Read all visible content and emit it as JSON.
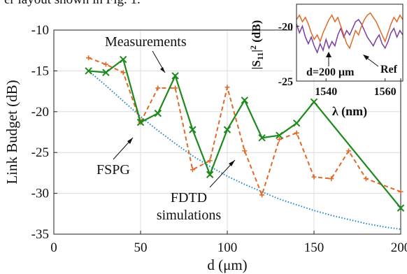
{
  "caption_fragment": "er layout shown in Fig. 1.",
  "chart_data": [
    {
      "type": "line",
      "xlabel": "d (μm)",
      "ylabel": "Link Budget (dB)",
      "xlim": [
        0,
        200
      ],
      "ylim": [
        -35,
        -10
      ],
      "xticks": [
        0,
        50,
        100,
        150,
        200
      ],
      "yticks": [
        -10,
        -15,
        -20,
        -25,
        -30,
        -35
      ],
      "grid": true,
      "series": [
        {
          "key": "measurements",
          "color": "#1e8a1e",
          "marker": "x",
          "points": [
            [
              20,
              -15.0
            ],
            [
              30,
              -15.2
            ],
            [
              40,
              -13.6
            ],
            [
              50,
              -21.3
            ],
            [
              60,
              -20.2
            ],
            [
              70,
              -15.6
            ],
            [
              80,
              -22.2
            ],
            [
              90,
              -27.7
            ],
            [
              100,
              -22.2
            ],
            [
              110,
              -18.6
            ],
            [
              120,
              -23.2
            ],
            [
              130,
              -22.9
            ],
            [
              140,
              -21.4
            ],
            [
              150,
              -18.8
            ],
            [
              200,
              -31.8
            ]
          ]
        },
        {
          "key": "fdtd",
          "color": "#e06a28",
          "marker": "+",
          "points": [
            [
              20,
              -13.4
            ],
            [
              30,
              -14.2
            ],
            [
              40,
              -15.2
            ],
            [
              50,
              -21.3
            ],
            [
              60,
              -17.1
            ],
            [
              70,
              -17.1
            ],
            [
              80,
              -27.1
            ],
            [
              90,
              -26.0
            ],
            [
              100,
              -17.0
            ],
            [
              110,
              -24.8
            ],
            [
              120,
              -30.2
            ],
            [
              130,
              -23.4
            ],
            [
              140,
              -22.6
            ],
            [
              150,
              -28.0
            ],
            [
              160,
              -28.2
            ],
            [
              170,
              -24.8
            ],
            [
              180,
              -28.2
            ],
            [
              200,
              -29.8
            ]
          ]
        },
        {
          "key": "fspg",
          "color": "#1f86c8",
          "marker": "none",
          "points": [
            [
              20,
              -15.0
            ],
            [
              30,
              -16.8
            ],
            [
              40,
              -18.7
            ],
            [
              50,
              -20.6
            ],
            [
              60,
              -22.3
            ],
            [
              70,
              -23.9
            ],
            [
              80,
              -25.4
            ],
            [
              90,
              -26.7
            ],
            [
              100,
              -27.9
            ],
            [
              110,
              -28.9
            ],
            [
              120,
              -29.8
            ],
            [
              130,
              -30.7
            ],
            [
              140,
              -31.4
            ],
            [
              150,
              -32.1
            ],
            [
              160,
              -32.7
            ],
            [
              170,
              -33.2
            ],
            [
              180,
              -33.7
            ],
            [
              190,
              -34.1
            ],
            [
              200,
              -34.4
            ]
          ]
        }
      ],
      "annotations": {
        "measurements": "Measurements",
        "fspg": "FSPG",
        "fdtd_line1": "FDTD",
        "fdtd_line2": "simulations"
      }
    },
    {
      "type": "line",
      "xlabel": "λ (nm)",
      "ylabel": "|S11|^2 (dB)",
      "xlim": [
        1530,
        1566
      ],
      "ylim": [
        -25,
        -18
      ],
      "xticks": [
        1540,
        1560
      ],
      "yticks": [
        -20,
        -25
      ],
      "annotations": {
        "d_label": "d=200 μm",
        "ref_label": "Ref"
      },
      "series": [
        {
          "key": "d200",
          "color": "#7a3fa0",
          "points": [
            [
              1530,
              -19.8
            ],
            [
              1531,
              -20.6
            ],
            [
              1532,
              -20.0
            ],
            [
              1533,
              -21.0
            ],
            [
              1534,
              -21.6
            ],
            [
              1535,
              -21.0
            ],
            [
              1536,
              -21.8
            ],
            [
              1537,
              -22.4
            ],
            [
              1538,
              -21.6
            ],
            [
              1539,
              -22.2
            ],
            [
              1540,
              -21.2
            ],
            [
              1541,
              -22.0
            ],
            [
              1542,
              -21.4
            ],
            [
              1543,
              -21.8
            ],
            [
              1544,
              -20.8
            ],
            [
              1545,
              -20.2
            ],
            [
              1546,
              -21.0
            ],
            [
              1547,
              -20.4
            ],
            [
              1548,
              -20.8
            ],
            [
              1549,
              -20.2
            ],
            [
              1550,
              -19.6
            ],
            [
              1551,
              -19.4
            ],
            [
              1552,
              -19.8
            ],
            [
              1553,
              -20.4
            ],
            [
              1554,
              -21.0
            ],
            [
              1555,
              -21.4
            ],
            [
              1556,
              -21.8
            ],
            [
              1557,
              -21.2
            ],
            [
              1558,
              -20.8
            ],
            [
              1559,
              -21.6
            ],
            [
              1560,
              -22.0
            ],
            [
              1561,
              -21.4
            ],
            [
              1562,
              -20.6
            ],
            [
              1563,
              -20.2
            ],
            [
              1564,
              -21.0
            ],
            [
              1565,
              -20.4
            ],
            [
              1566,
              -20.8
            ]
          ]
        },
        {
          "key": "ref",
          "color": "#e06a28",
          "points": [
            [
              1530,
              -19.4
            ],
            [
              1531,
              -19.0
            ],
            [
              1532,
              -19.6
            ],
            [
              1533,
              -19.2
            ],
            [
              1534,
              -19.8
            ],
            [
              1535,
              -20.6
            ],
            [
              1536,
              -21.2
            ],
            [
              1537,
              -20.8
            ],
            [
              1538,
              -21.4
            ],
            [
              1539,
              -20.6
            ],
            [
              1540,
              -20.0
            ],
            [
              1541,
              -19.4
            ],
            [
              1542,
              -19.0
            ],
            [
              1543,
              -19.6
            ],
            [
              1544,
              -19.2
            ],
            [
              1545,
              -20.0
            ],
            [
              1546,
              -20.8
            ],
            [
              1547,
              -21.6
            ],
            [
              1548,
              -22.0
            ],
            [
              1549,
              -21.2
            ],
            [
              1550,
              -20.4
            ],
            [
              1551,
              -20.8
            ],
            [
              1552,
              -20.0
            ],
            [
              1553,
              -19.4
            ],
            [
              1554,
              -19.0
            ],
            [
              1555,
              -18.8
            ],
            [
              1556,
              -19.2
            ],
            [
              1557,
              -19.6
            ],
            [
              1558,
              -20.2
            ],
            [
              1559,
              -20.8
            ],
            [
              1560,
              -21.4
            ],
            [
              1561,
              -20.6
            ],
            [
              1562,
              -19.8
            ],
            [
              1563,
              -19.2
            ],
            [
              1564,
              -19.6
            ],
            [
              1565,
              -19.0
            ],
            [
              1566,
              -19.4
            ]
          ]
        }
      ]
    }
  ]
}
